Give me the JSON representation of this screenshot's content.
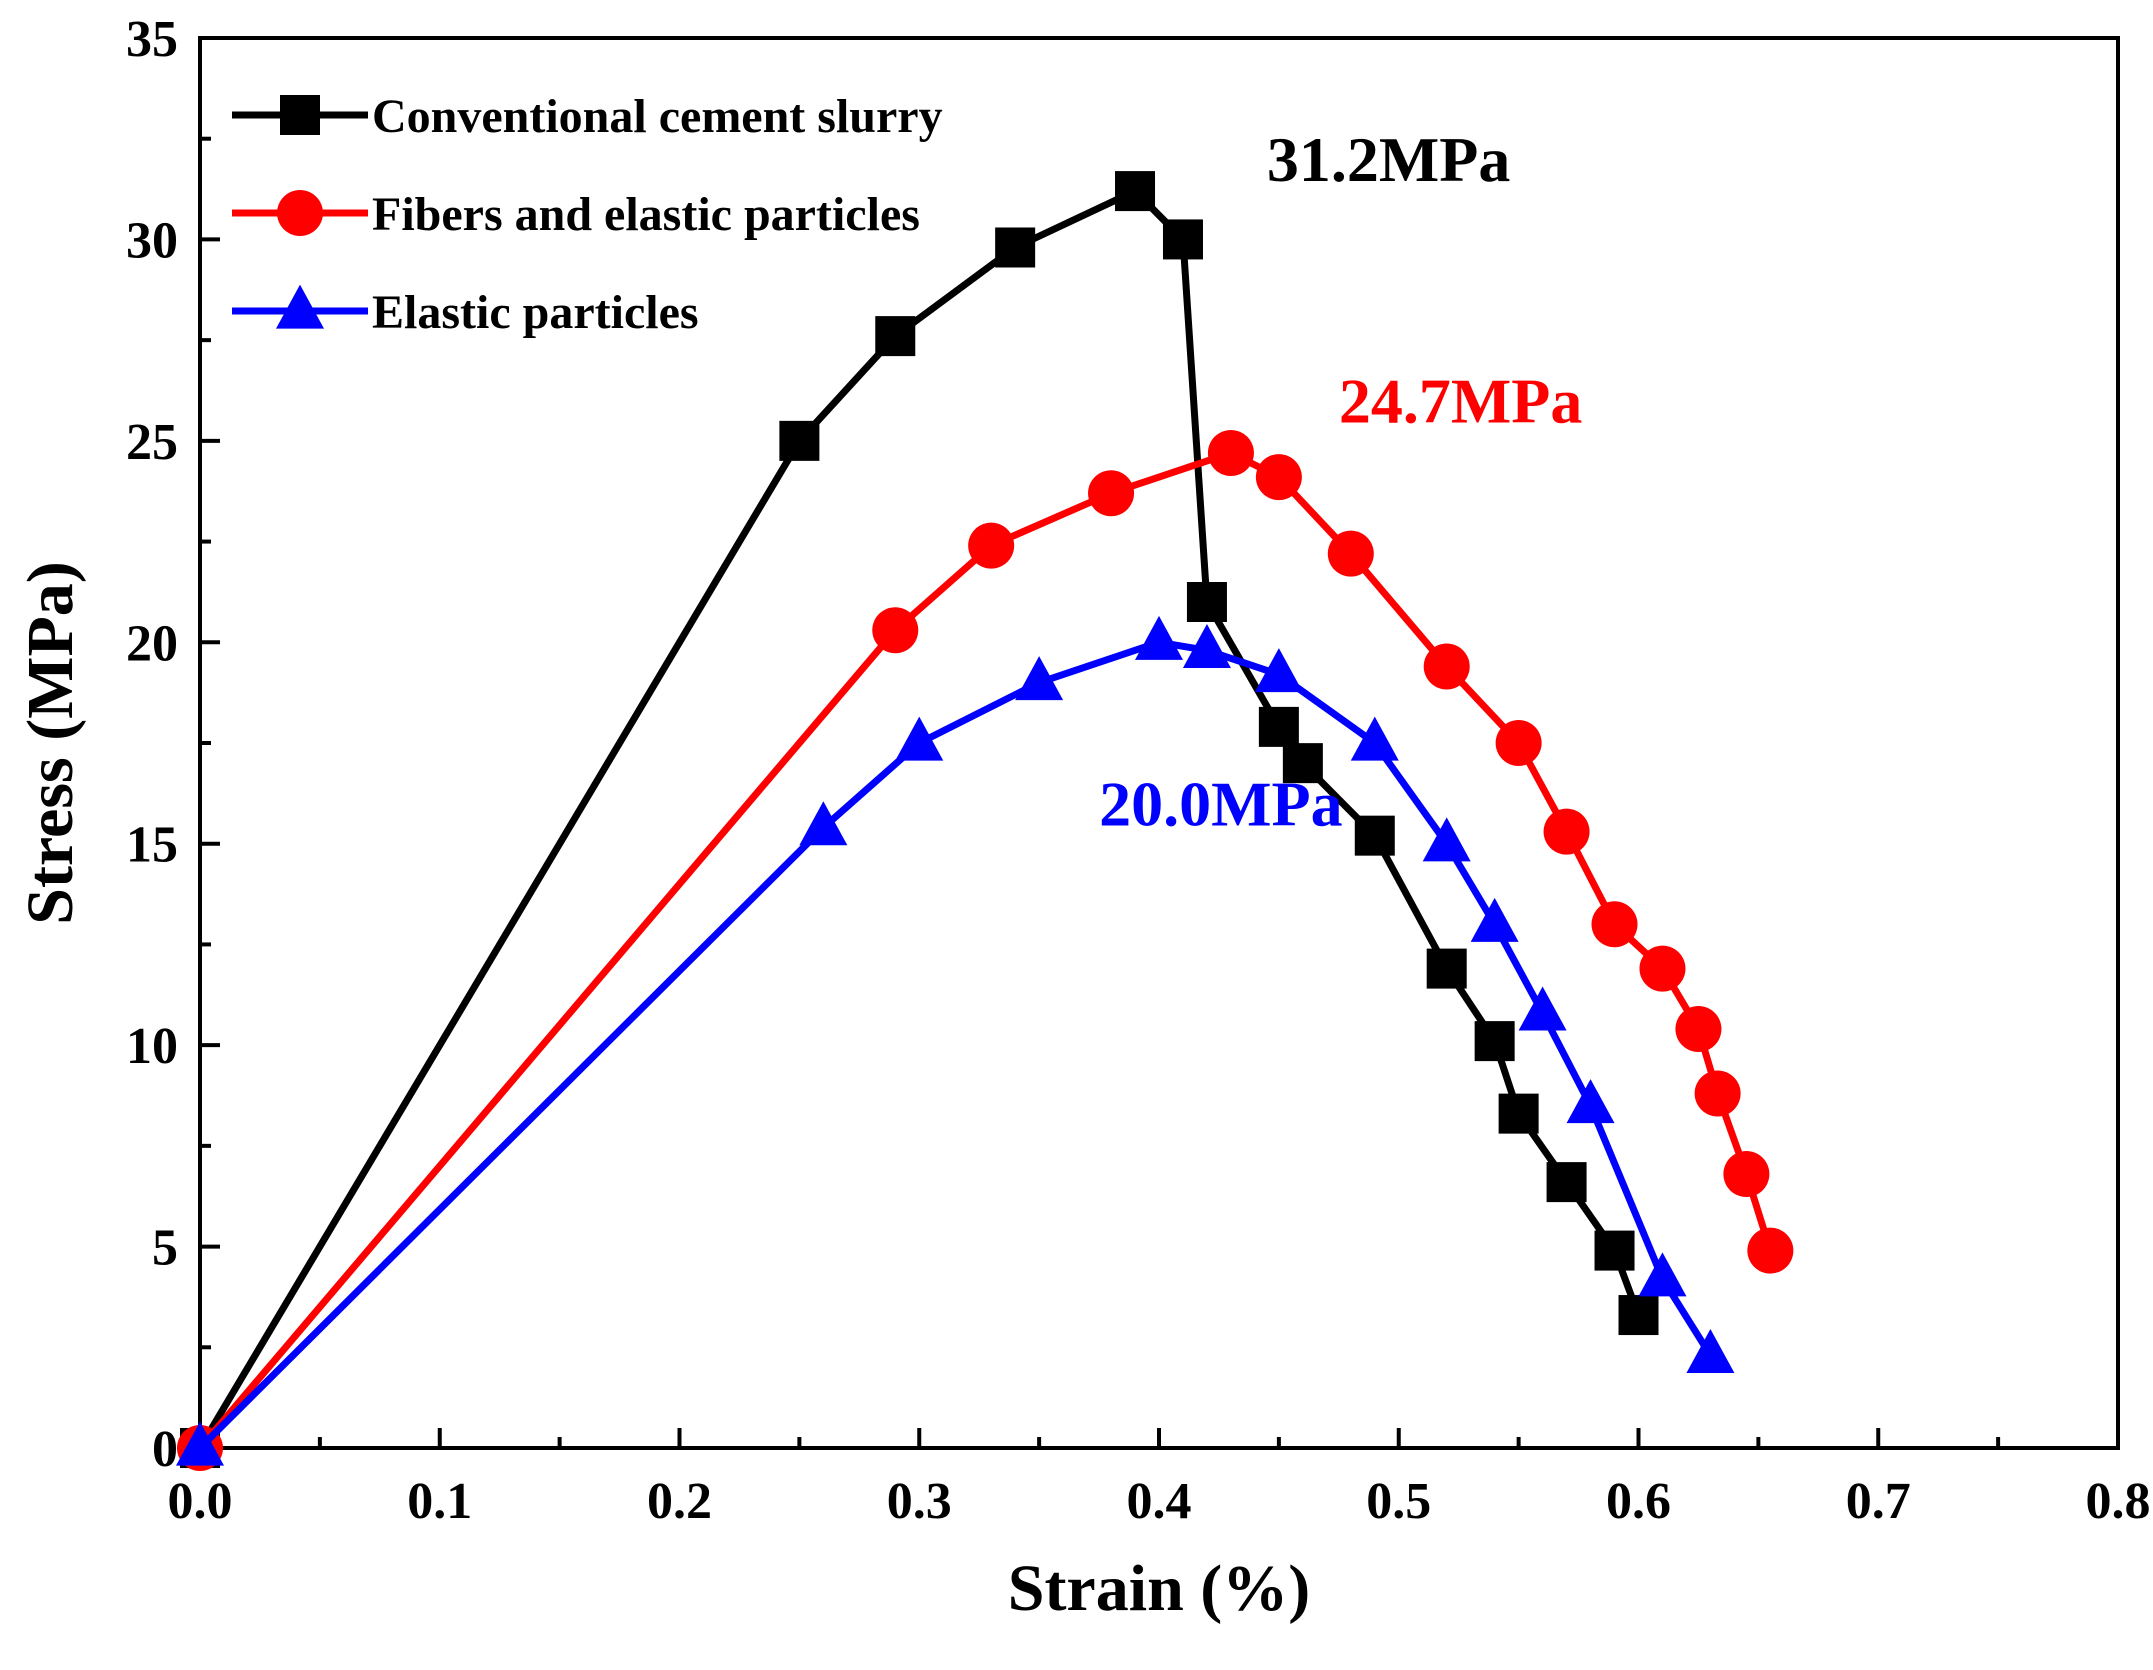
{
  "chart_data": {
    "type": "line",
    "xlabel": "Strain (%)",
    "ylabel": "Stress (MPa)",
    "xlim": [
      0.0,
      0.8
    ],
    "ylim": [
      0,
      35
    ],
    "xticks": [
      0.0,
      0.1,
      0.2,
      0.3,
      0.4,
      0.5,
      0.6,
      0.7,
      0.8
    ],
    "xtick_labels": [
      "0.0",
      "0.1",
      "0.2",
      "0.3",
      "0.4",
      "0.5",
      "0.6",
      "0.7",
      "0.8"
    ],
    "yticks": [
      0,
      5,
      10,
      15,
      20,
      25,
      30,
      35
    ],
    "ytick_labels": [
      "0",
      "5",
      "10",
      "15",
      "20",
      "25",
      "30",
      "35"
    ],
    "grid": false,
    "legend_position": "top-left",
    "series": [
      {
        "name": "Conventional cement slurry",
        "color": "#000000",
        "marker": "square",
        "x": [
          0.0,
          0.25,
          0.29,
          0.34,
          0.39,
          0.41,
          0.42,
          0.45,
          0.46,
          0.49,
          0.52,
          0.54,
          0.55,
          0.57,
          0.59,
          0.6
        ],
        "y": [
          0.0,
          25.0,
          27.6,
          29.8,
          31.2,
          30.0,
          21.0,
          17.9,
          17.0,
          15.2,
          11.9,
          10.1,
          8.3,
          6.6,
          4.9,
          3.3
        ]
      },
      {
        "name": "Fibers and elastic particles",
        "color": "#ff0000",
        "marker": "circle",
        "x": [
          0.0,
          0.29,
          0.33,
          0.38,
          0.43,
          0.45,
          0.48,
          0.52,
          0.55,
          0.57,
          0.59,
          0.61,
          0.625,
          0.633,
          0.645,
          0.655
        ],
        "y": [
          0.0,
          20.3,
          22.4,
          23.7,
          24.7,
          24.1,
          22.2,
          19.4,
          17.5,
          15.3,
          13.0,
          11.9,
          10.4,
          8.8,
          6.8,
          4.9
        ]
      },
      {
        "name": "Elastic particles",
        "color": "#0000ff",
        "marker": "triangle",
        "x": [
          0.0,
          0.26,
          0.3,
          0.35,
          0.4,
          0.42,
          0.45,
          0.49,
          0.52,
          0.54,
          0.56,
          0.58,
          0.61,
          0.63
        ],
        "y": [
          0.0,
          15.4,
          17.5,
          19.0,
          20.0,
          19.8,
          19.2,
          17.5,
          15.0,
          13.0,
          10.8,
          8.5,
          4.2,
          2.3
        ]
      }
    ],
    "annotations": [
      {
        "text": "31.2MPa",
        "color": "#000000",
        "x": 0.445,
        "y": 32.0
      },
      {
        "text": "24.7MPa",
        "color": "#ff0000",
        "x": 0.475,
        "y": 26.0
      },
      {
        "text": "20.0MPa",
        "color": "#0000ff",
        "x": 0.375,
        "y": 16.0
      }
    ]
  }
}
